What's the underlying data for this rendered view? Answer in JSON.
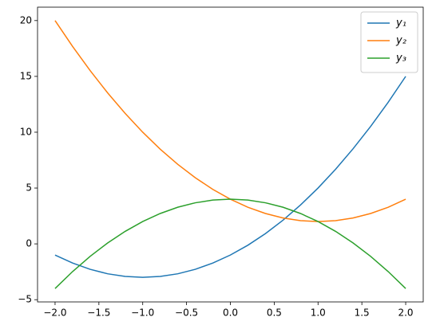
{
  "chart_data": {
    "type": "line",
    "x": [
      -2,
      -1.8,
      -1.6,
      -1.4,
      -1.2,
      -1,
      -0.8,
      -0.6,
      -0.4,
      -0.2,
      0,
      0.2,
      0.4,
      0.6,
      0.8,
      1,
      1.2,
      1.4,
      1.6,
      1.8,
      2
    ],
    "series": [
      {
        "name": "y₁",
        "color": "#1f77b4",
        "values": [
          -1,
          -1.72,
          -2.28,
          -2.68,
          -2.92,
          -3,
          -2.92,
          -2.68,
          -2.28,
          -1.72,
          -1,
          -0.12,
          0.92,
          2.12,
          3.48,
          5,
          6.68,
          8.52,
          10.52,
          12.68,
          15
        ]
      },
      {
        "name": "y₂",
        "color": "#ff7f0e",
        "values": [
          20,
          17.68,
          15.52,
          13.52,
          11.68,
          10,
          8.48,
          7.12,
          5.92,
          4.88,
          4,
          3.28,
          2.72,
          2.32,
          2.08,
          2,
          2.08,
          2.32,
          2.72,
          3.28,
          4
        ]
      },
      {
        "name": "y₃",
        "color": "#2ca02c",
        "values": [
          -4,
          -2.48,
          -1.12,
          0.08,
          1.12,
          2,
          2.72,
          3.28,
          3.68,
          3.92,
          4,
          3.92,
          3.68,
          3.28,
          2.72,
          2,
          1.12,
          0.08,
          -1.12,
          -2.48,
          -4
        ]
      }
    ],
    "xlim": [
      -2.2,
      2.2
    ],
    "ylim": [
      -5.2,
      21.2
    ],
    "xticks": [
      {
        "value": -2,
        "label": "−2.0"
      },
      {
        "value": -1.5,
        "label": "−1.5"
      },
      {
        "value": -1,
        "label": "−1.0"
      },
      {
        "value": -0.5,
        "label": "−0.5"
      },
      {
        "value": 0,
        "label": "0.0"
      },
      {
        "value": 0.5,
        "label": "0.5"
      },
      {
        "value": 1,
        "label": "1.0"
      },
      {
        "value": 1.5,
        "label": "1.5"
      },
      {
        "value": 2,
        "label": "2.0"
      }
    ],
    "yticks": [
      {
        "value": -5,
        "label": "−5"
      },
      0,
      5,
      10,
      15,
      20
    ],
    "legend": "upper right",
    "grid": false
  }
}
